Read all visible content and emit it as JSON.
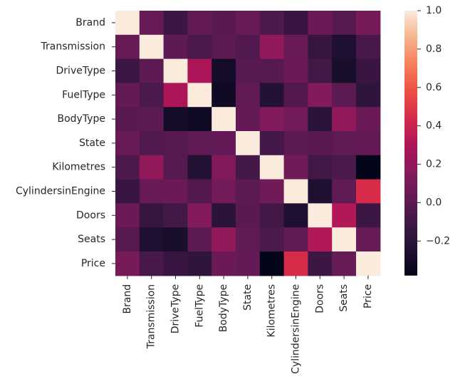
{
  "chart_data": {
    "type": "heatmap",
    "title": "",
    "xlabel": "",
    "ylabel": "",
    "x_labels": [
      "Brand",
      "Transmission",
      "DriveType",
      "FuelType",
      "BodyType",
      "State",
      "Kilometres",
      "CylindersinEngine",
      "Doors",
      "Seats",
      "Price"
    ],
    "y_labels": [
      "Brand",
      "Transmission",
      "DriveType",
      "FuelType",
      "BodyType",
      "State",
      "Kilometres",
      "CylindersinEngine",
      "Doors",
      "Seats",
      "Price"
    ],
    "values": [
      [
        1.0,
        0.05,
        -0.12,
        0.03,
        -0.01,
        0.05,
        -0.05,
        -0.14,
        0.06,
        -0.02,
        0.1
      ],
      [
        0.05,
        1.0,
        0.01,
        -0.06,
        0.0,
        -0.04,
        0.2,
        0.05,
        -0.15,
        -0.25,
        -0.07
      ],
      [
        -0.12,
        0.01,
        1.0,
        0.3,
        -0.3,
        -0.02,
        -0.02,
        0.06,
        -0.1,
        -0.28,
        -0.14
      ],
      [
        0.03,
        -0.06,
        0.3,
        1.0,
        -0.32,
        0.02,
        -0.23,
        -0.03,
        0.15,
        0.0,
        -0.18
      ],
      [
        -0.01,
        0.0,
        -0.3,
        -0.32,
        1.0,
        0.03,
        0.14,
        0.09,
        -0.2,
        0.2,
        0.06
      ],
      [
        0.05,
        -0.04,
        -0.02,
        0.02,
        0.03,
        1.0,
        -0.09,
        0.0,
        -0.01,
        0.02,
        0.03
      ],
      [
        -0.05,
        0.2,
        -0.02,
        -0.23,
        0.14,
        -0.09,
        1.0,
        0.08,
        -0.1,
        -0.06,
        -0.38
      ],
      [
        -0.14,
        0.05,
        0.06,
        -0.03,
        0.09,
        0.0,
        0.08,
        1.0,
        -0.25,
        0.02,
        0.45
      ],
      [
        0.06,
        -0.15,
        -0.1,
        0.15,
        -0.2,
        -0.01,
        -0.1,
        -0.25,
        1.0,
        0.32,
        -0.12
      ],
      [
        -0.02,
        -0.25,
        -0.28,
        0.0,
        0.2,
        0.02,
        -0.06,
        0.02,
        0.32,
        1.0,
        0.04
      ],
      [
        0.1,
        -0.07,
        -0.14,
        -0.18,
        0.06,
        0.03,
        -0.38,
        0.45,
        -0.12,
        0.04,
        1.0
      ]
    ],
    "colorbar": {
      "min": -0.38,
      "max": 1.0,
      "ticks": [
        1.0,
        0.8,
        0.6,
        0.4,
        0.2,
        0.0,
        -0.2
      ],
      "tick_labels": [
        "1.0",
        "0.8",
        "0.6",
        "0.4",
        "0.2",
        "0.0",
        "−0.2"
      ]
    },
    "colormap": "rocket",
    "grid": false
  }
}
